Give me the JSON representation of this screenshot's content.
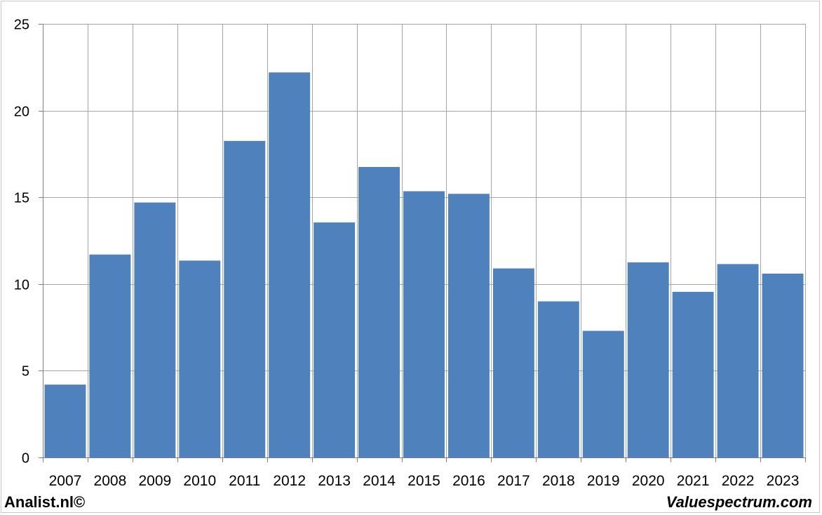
{
  "chart_data": {
    "type": "bar",
    "categories": [
      "2007",
      "2008",
      "2009",
      "2010",
      "2011",
      "2012",
      "2013",
      "2014",
      "2015",
      "2016",
      "2017",
      "2018",
      "2019",
      "2020",
      "2021",
      "2022",
      "2023"
    ],
    "values": [
      4.2,
      11.7,
      14.7,
      11.35,
      18.25,
      22.2,
      13.55,
      16.75,
      15.35,
      15.2,
      10.9,
      9.0,
      7.3,
      11.25,
      9.55,
      11.15,
      10.6
    ],
    "ylim": [
      0,
      25
    ],
    "yticks": [
      0,
      5,
      10,
      15,
      20,
      25
    ],
    "grid": true,
    "bar_color": "#4f81bd",
    "grid_color": "#a6a6a6"
  },
  "footer": {
    "left_text": "Analist.nl©",
    "right_text": "Valuespectrum.com"
  }
}
